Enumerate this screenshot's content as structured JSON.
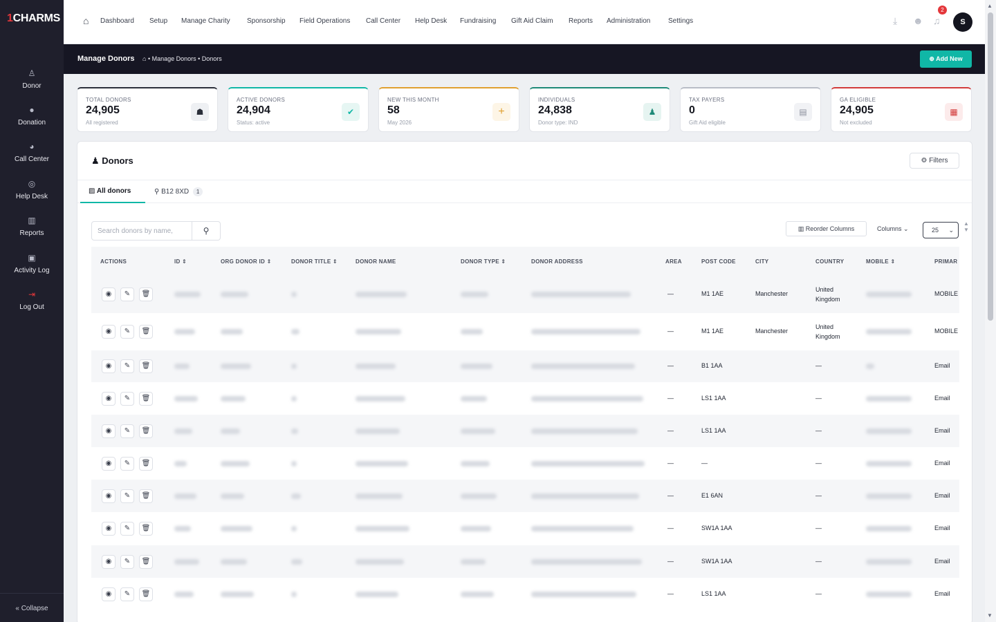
{
  "app": {
    "logo_prefix": "1",
    "logo_text": "CHARMS"
  },
  "sidebar": {
    "items": [
      {
        "label": "Donor",
        "icon": "user-icon"
      },
      {
        "label": "Donation",
        "icon": "donation-icon"
      },
      {
        "label": "Call Center",
        "icon": "phone-icon"
      },
      {
        "label": "Help Desk",
        "icon": "help-icon"
      },
      {
        "label": "Reports",
        "icon": "chart-icon"
      },
      {
        "label": "Activity Log",
        "icon": "log-icon"
      },
      {
        "label": "Log Out",
        "icon": "logout-icon"
      }
    ],
    "collapse_label": "Collapse"
  },
  "topnav": {
    "items": [
      "Dashboard",
      "Setup",
      "Manage Charity",
      "Sponsorship",
      "Field Operations",
      "Call Center",
      "Help Desk",
      "Fundraising",
      "Gift Aid Claim",
      "Reports",
      "Administration",
      "Settings"
    ],
    "notification_count": "2",
    "avatar_initial": "S"
  },
  "header": {
    "page_title": "Manage Donors",
    "breadcrumb": "• Manage Donors • Donors",
    "add_new_label": "Add New"
  },
  "stats": [
    {
      "label": "TOTAL DONORS",
      "value": "24,905",
      "sub": "All registered",
      "accent": "#2b2f3a"
    },
    {
      "label": "ACTIVE DONORS",
      "value": "24,904",
      "sub": "Status: active",
      "accent": "#10b7a6"
    },
    {
      "label": "NEW THIS MONTH",
      "value": "58",
      "sub": "May 2026",
      "accent": "#e0a030"
    },
    {
      "label": "INDIVIDUALS",
      "value": "24,838",
      "sub": "Donor type: IND",
      "accent": "#1e8a78"
    },
    {
      "label": "TAX PAYERS",
      "value": "0",
      "sub": "Gift Aid eligible",
      "accent": "#b8bcc6"
    },
    {
      "label": "GA ELIGIBLE",
      "value": "24,905",
      "sub": "Not excluded",
      "accent": "#d23a3a"
    }
  ],
  "panel": {
    "title": "Donors",
    "filters_label": "Filters",
    "tabs": [
      {
        "label": "All donors",
        "active": true
      },
      {
        "label": "B12 8XD",
        "count": "1",
        "active": false
      }
    ],
    "search_placeholder": "Search donors by name,",
    "reorder_label": "Reorder Columns",
    "columns_label": "Columns",
    "page_size": "25"
  },
  "table": {
    "columns": [
      "ACTIONS",
      "ID",
      "ORG DONOR ID",
      "DONOR TITLE",
      "DONOR NAME",
      "DONOR TYPE",
      "DONOR ADDRESS",
      "AREA",
      "POST CODE",
      "CITY",
      "COUNTRY",
      "MOBILE",
      "PRIMAR"
    ],
    "rows": [
      {
        "area": "—",
        "postcode": "M1 1AE",
        "city": "Manchester",
        "country": "United Kingdom",
        "primary": "MOBILE"
      },
      {
        "area": "—",
        "postcode": "M1 1AE",
        "city": "Manchester",
        "country": "United Kingdom",
        "primary": "MOBILE"
      },
      {
        "area": "—",
        "postcode": "B1 1AA",
        "city": "",
        "country": "—",
        "primary": "Email"
      },
      {
        "area": "—",
        "postcode": "LS1 1AA",
        "city": "",
        "country": "—",
        "primary": "Email"
      },
      {
        "area": "—",
        "postcode": "LS1 1AA",
        "city": "",
        "country": "—",
        "primary": "Email"
      },
      {
        "area": "—",
        "postcode": "—",
        "city": "",
        "country": "—",
        "primary": "Email"
      },
      {
        "area": "—",
        "postcode": "E1 6AN",
        "city": "",
        "country": "—",
        "primary": "Email"
      },
      {
        "area": "—",
        "postcode": "SW1A 1AA",
        "city": "",
        "country": "—",
        "primary": "Email"
      },
      {
        "area": "—",
        "postcode": "SW1A 1AA",
        "city": "",
        "country": "—",
        "primary": "Email"
      },
      {
        "area": "—",
        "postcode": "LS1 1AA",
        "city": "",
        "country": "—",
        "primary": "Email"
      }
    ]
  }
}
